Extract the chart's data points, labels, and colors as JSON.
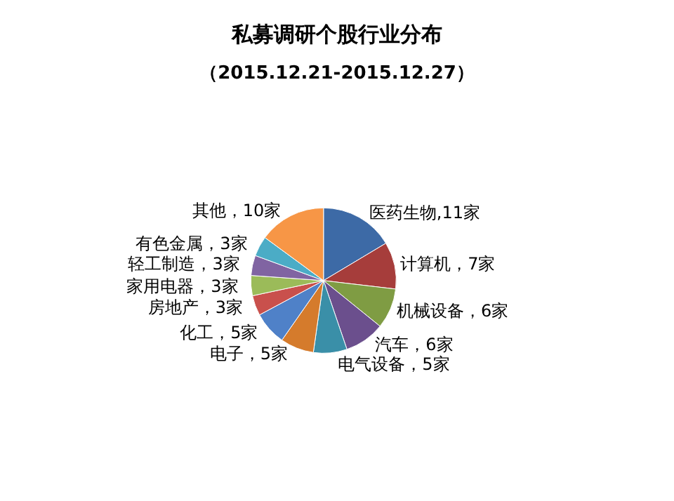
{
  "chart_data": {
    "type": "pie",
    "title": "私募调研个股行业分布",
    "subtitle": "（2015.12.21-2015.12.27）",
    "categories": [
      "医药生物",
      "计算机",
      "机械设备",
      "汽车",
      "电气设备",
      "电子",
      "化工",
      "房地产",
      "家用电器",
      "轻工制造",
      "有色金属",
      "其他"
    ],
    "values": [
      11,
      7,
      6,
      6,
      5,
      5,
      5,
      3,
      3,
      3,
      3,
      10
    ],
    "value_labels": [
      ",11家",
      "，7家",
      "，6家",
      "，6家",
      "，5家",
      "，5家",
      "，5家",
      "，3家",
      "，3家",
      "，3家",
      "，3家",
      "，10家"
    ],
    "colors": [
      "#3d6aa6",
      "#a63d3b",
      "#7f9c43",
      "#6b4f8d",
      "#3a8fa8",
      "#d57b2c",
      "#4f81c8",
      "#c9504c",
      "#9bbb59",
      "#8064a2",
      "#4bacc6",
      "#f79646"
    ]
  }
}
